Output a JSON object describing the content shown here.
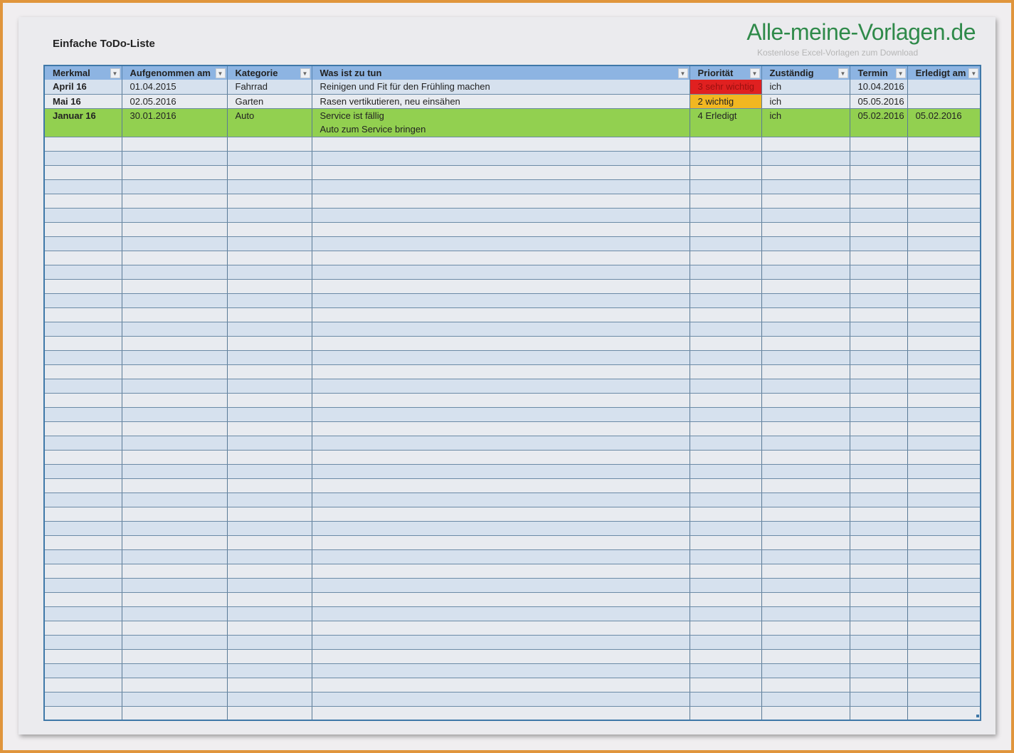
{
  "title": "Einfache ToDo-Liste",
  "logo": {
    "name": "Alle-meine-Vorlagen.de",
    "tagline": "Kostenlose Excel-Vorlagen zum Download"
  },
  "columns": [
    "Merkmal",
    "Aufgenommen am",
    "Kategorie",
    "Was ist zu tun",
    "Priorität",
    "Zuständig",
    "Termin",
    "Erledigt am"
  ],
  "rows": [
    {
      "merkmal": "April 16",
      "aufgenommen": "01.04.2015",
      "kategorie": "Fahrrad",
      "aufgabe": "Reinigen und Fit für den Frühling machen",
      "aufgabe2": "",
      "prioritaet": "3 sehr wichtig",
      "zustaendig": "ich",
      "termin": "10.04.2016",
      "erledigt": ""
    },
    {
      "merkmal": "Mai 16",
      "aufgenommen": "02.05.2016",
      "kategorie": "Garten",
      "aufgabe": "Rasen vertikutieren, neu einsähen",
      "aufgabe2": "",
      "prioritaet": "2 wichtig",
      "zustaendig": "ich",
      "termin": "05.05.2016",
      "erledigt": ""
    },
    {
      "merkmal": "Januar 16",
      "aufgenommen": "30.01.2016",
      "kategorie": "Auto",
      "aufgabe": "Service ist fällig",
      "aufgabe2": "Auto zum Service bringen",
      "prioritaet": "4 Erledigt",
      "zustaendig": "ich",
      "termin": "05.02.2016",
      "erledigt": "05.02.2016"
    }
  ],
  "colors": {
    "header": "#8db4e2",
    "done": "#92d050",
    "very_important": "#e02020",
    "important": "#f2b721",
    "logo": "#2f8a4a"
  }
}
